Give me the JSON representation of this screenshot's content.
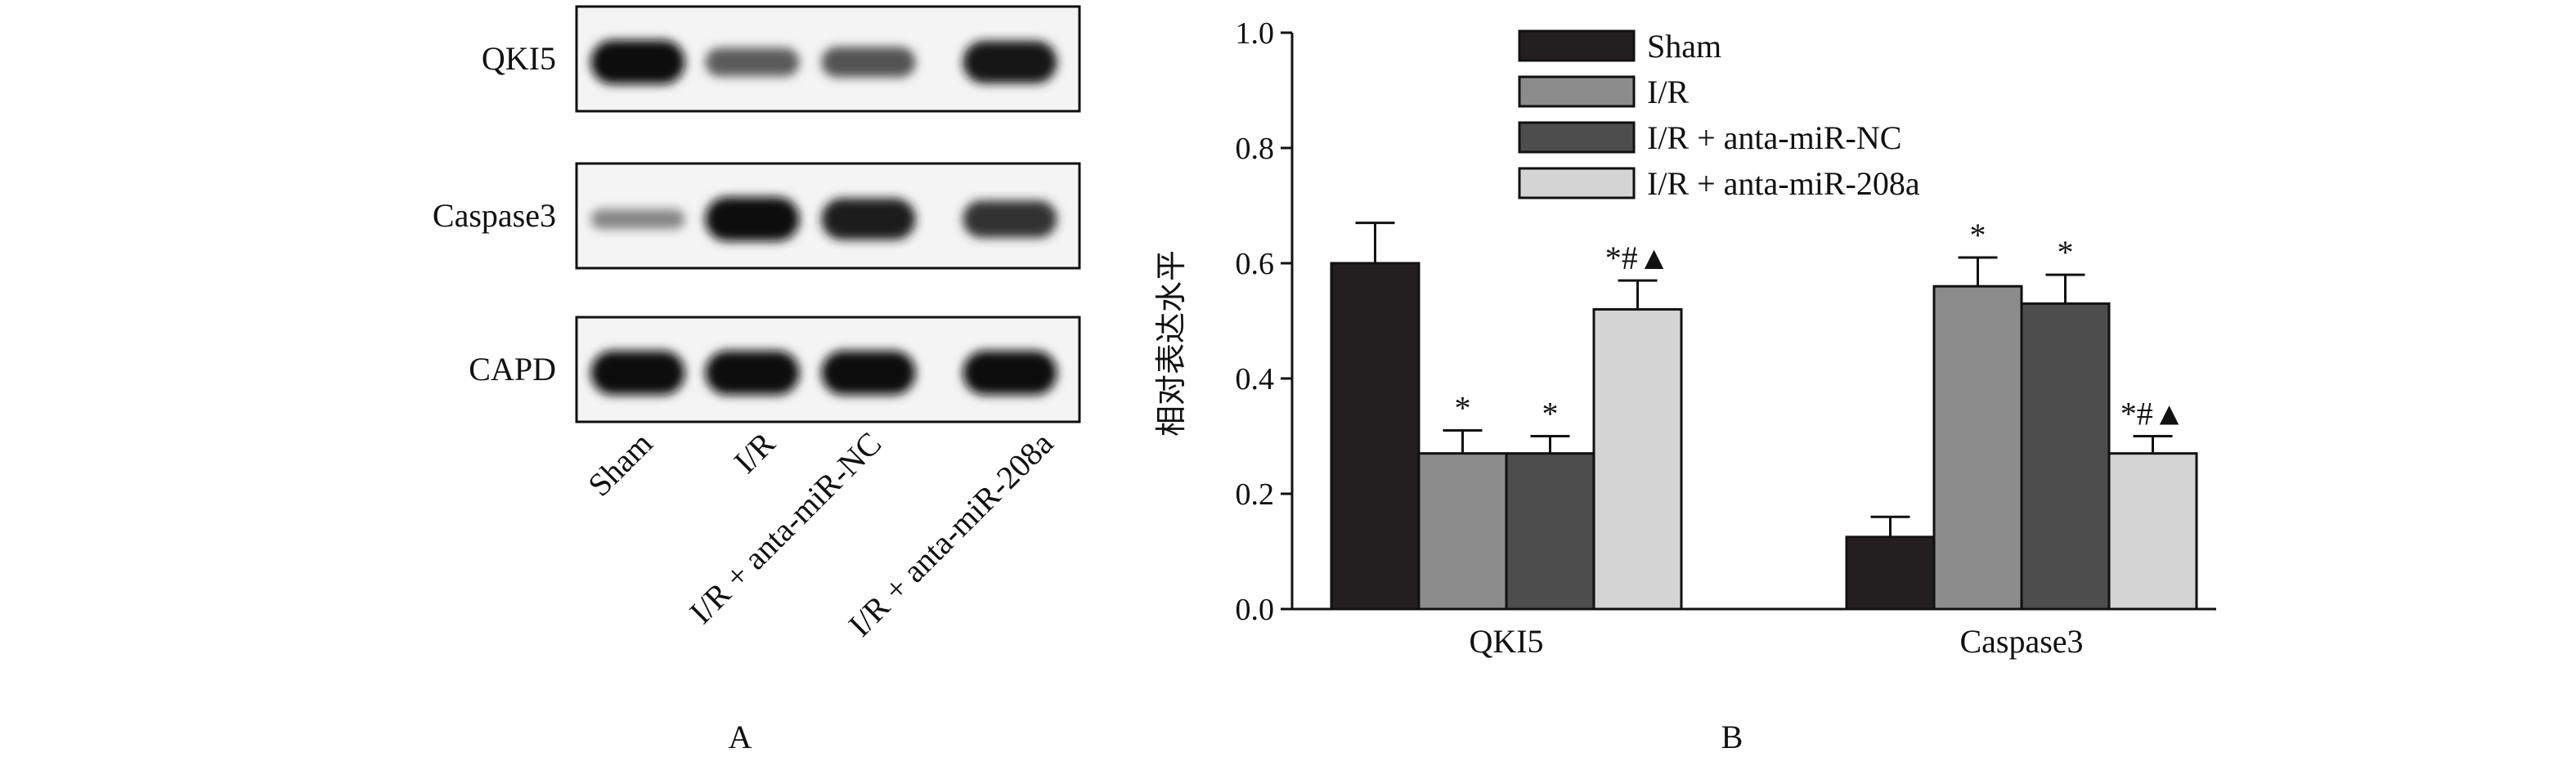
{
  "panel_a": {
    "label": "A",
    "rows": [
      {
        "name": "QKI5",
        "band_intensity": [
          1.0,
          0.55,
          0.6,
          0.95
        ]
      },
      {
        "name": "Caspase3",
        "band_intensity": [
          0.3,
          1.0,
          0.92,
          0.8
        ]
      },
      {
        "name": "CAPD",
        "band_intensity": [
          1.0,
          1.0,
          1.0,
          1.0
        ]
      }
    ],
    "lanes": [
      "Sham",
      "I/R",
      "I/R + anta-miR-NC",
      "I/R + anta-miR-208a"
    ]
  },
  "chart_data": {
    "type": "bar",
    "panel_label": "B",
    "categories": [
      "QKI5",
      "Caspase3"
    ],
    "ylabel": "相对表达水平",
    "ylim": [
      0,
      1.0
    ],
    "yticks": [
      "0.0",
      "0.2",
      "0.4",
      "0.6",
      "0.8",
      "1.0"
    ],
    "legend_position": "top-right",
    "series": [
      {
        "name": "Sham",
        "color": "#231f20",
        "values": [
          0.6,
          0.125
        ],
        "errors": [
          0.07,
          0.035
        ],
        "annotations": [
          "",
          ""
        ]
      },
      {
        "name": "I/R",
        "color": "#8c8c8c",
        "values": [
          0.27,
          0.56
        ],
        "errors": [
          0.04,
          0.05
        ],
        "annotations": [
          "*",
          "*"
        ]
      },
      {
        "name": "I/R + anta-miR-NC",
        "color": "#4d4d4d",
        "values": [
          0.27,
          0.53
        ],
        "errors": [
          0.03,
          0.05
        ],
        "annotations": [
          "*",
          "*"
        ]
      },
      {
        "name": "I/R + anta-miR-208a",
        "color": "#d4d4d4",
        "values": [
          0.52,
          0.27
        ],
        "errors": [
          0.05,
          0.03
        ],
        "annotations": [
          "*#▲",
          "*#▲"
        ]
      }
    ]
  }
}
